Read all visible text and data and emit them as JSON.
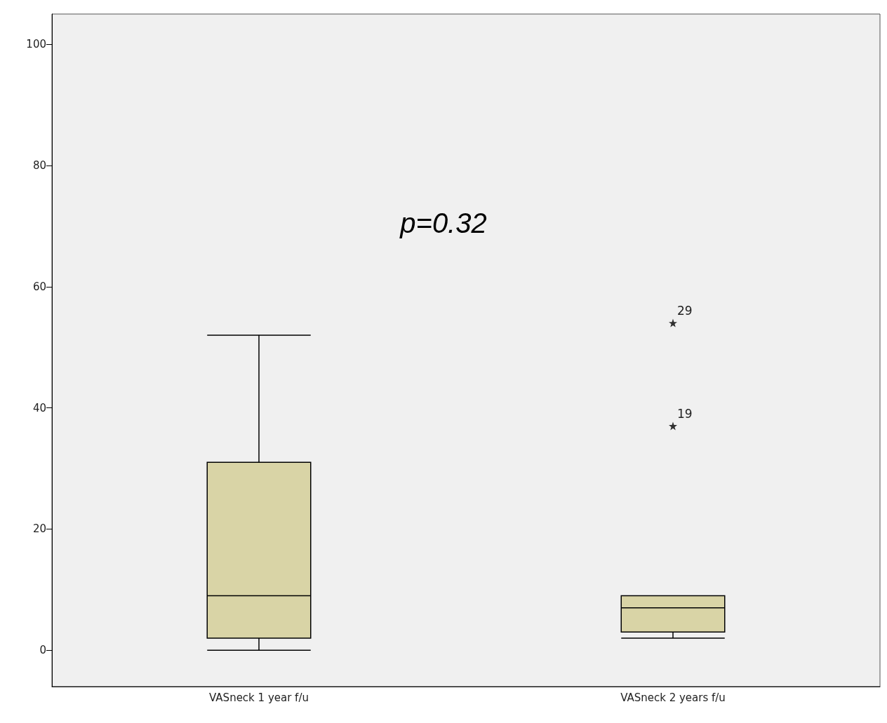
{
  "chart_data": {
    "type": "box",
    "categories": [
      "VASneck 1 year f/u",
      "VASneck 2 years f/u"
    ],
    "boxes": [
      {
        "low": 0,
        "q1": 2,
        "median": 9,
        "q3": 31,
        "high": 52
      },
      {
        "low": 2,
        "q1": 3,
        "median": 7,
        "q3": 9,
        "high": 9,
        "outliers": [
          54,
          37
        ]
      }
    ],
    "color": "#d9d4a6",
    "marker": "star",
    "ylim": [
      -6,
      105
    ],
    "yticks": [
      0,
      20,
      40,
      60,
      80,
      100
    ],
    "grid": false,
    "annotations": [
      "p=0.32",
      "29",
      "19"
    ]
  }
}
